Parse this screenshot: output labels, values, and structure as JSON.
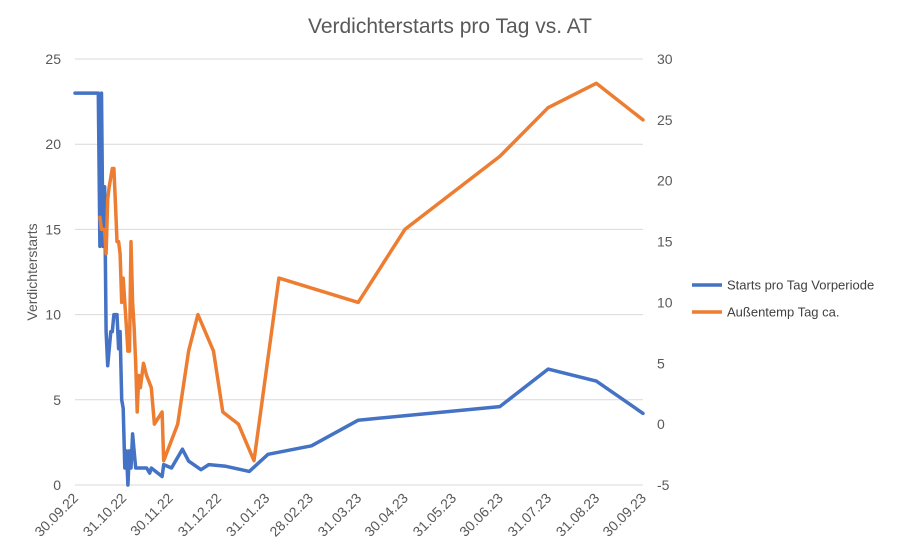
{
  "chart_data": {
    "type": "line",
    "title": "Verdichterstarts pro Tag vs. AT",
    "ylabel": "Verdichterstarts",
    "y2label": "",
    "ylim": [
      0,
      25
    ],
    "y2lim": [
      -5,
      30
    ],
    "yticks": [
      "0",
      "5",
      "10",
      "15",
      "20",
      "25"
    ],
    "y2ticks": [
      "-5",
      "0",
      "5",
      "10",
      "15",
      "20",
      "25",
      "30"
    ],
    "xlim": [
      "2022-09-30",
      "2023-09-30"
    ],
    "xticks": [
      {
        "date": "2022-09-30",
        "label": "30.09.22"
      },
      {
        "date": "2022-10-31",
        "label": "31.10.22"
      },
      {
        "date": "2022-11-30",
        "label": "30.11.22"
      },
      {
        "date": "2022-12-31",
        "label": "31.12.22"
      },
      {
        "date": "2023-01-31",
        "label": "31.01.23"
      },
      {
        "date": "2023-02-28",
        "label": "28.02.23"
      },
      {
        "date": "2023-03-31",
        "label": "31.03.23"
      },
      {
        "date": "2023-04-30",
        "label": "30.04.23"
      },
      {
        "date": "2023-05-31",
        "label": "31.05.23"
      },
      {
        "date": "2023-06-30",
        "label": "30.06.23"
      },
      {
        "date": "2023-07-31",
        "label": "31.07.23"
      },
      {
        "date": "2023-08-31",
        "label": "31.08.23"
      },
      {
        "date": "2023-09-30",
        "label": "30.09.23"
      }
    ],
    "gridlines": true,
    "legend_position": "right",
    "series": [
      {
        "name": "Starts pro Tag Vorperiode",
        "color": "#4472C4",
        "axis": "left",
        "points": [
          [
            "2022-09-30",
            23
          ],
          [
            "2022-10-15",
            23
          ],
          [
            "2022-10-16",
            14
          ],
          [
            "2022-10-17",
            23
          ],
          [
            "2022-10-18",
            14
          ],
          [
            "2022-10-19",
            17.5
          ],
          [
            "2022-10-20",
            9
          ],
          [
            "2022-10-21",
            7
          ],
          [
            "2022-10-23",
            9
          ],
          [
            "2022-10-24",
            9
          ],
          [
            "2022-10-25",
            10
          ],
          [
            "2022-10-27",
            10
          ],
          [
            "2022-10-28",
            8
          ],
          [
            "2022-10-29",
            9
          ],
          [
            "2022-10-30",
            5
          ],
          [
            "2022-10-31",
            4.5
          ],
          [
            "2022-11-01",
            1
          ],
          [
            "2022-11-02",
            2
          ],
          [
            "2022-11-03",
            0
          ],
          [
            "2022-11-04",
            2
          ],
          [
            "2022-11-05",
            1
          ],
          [
            "2022-11-06",
            3
          ],
          [
            "2022-11-07",
            2
          ],
          [
            "2022-11-08",
            1
          ],
          [
            "2022-11-15",
            1
          ],
          [
            "2022-11-17",
            0.7
          ],
          [
            "2022-11-18",
            1
          ],
          [
            "2022-11-25",
            0.5
          ],
          [
            "2022-11-26",
            1.2
          ],
          [
            "2022-12-01",
            1
          ],
          [
            "2022-12-08",
            2.1
          ],
          [
            "2022-12-12",
            1.4
          ],
          [
            "2022-12-20",
            0.9
          ],
          [
            "2022-12-25",
            1.2
          ],
          [
            "2023-01-05",
            1.1
          ],
          [
            "2023-01-20",
            0.8
          ],
          [
            "2023-02-01",
            1.8
          ],
          [
            "2023-03-01",
            2.3
          ],
          [
            "2023-03-31",
            3.8
          ],
          [
            "2023-06-30",
            4.6
          ],
          [
            "2023-07-31",
            6.8
          ],
          [
            "2023-08-31",
            6.1
          ],
          [
            "2023-09-30",
            4.2
          ]
        ]
      },
      {
        "name": "Außentemp Tag ca.",
        "color": "#ED7D31",
        "axis": "right",
        "points": [
          [
            "2022-10-16",
            17
          ],
          [
            "2022-10-17",
            16
          ],
          [
            "2022-10-18",
            16
          ],
          [
            "2022-10-19",
            16
          ],
          [
            "2022-10-20",
            14
          ],
          [
            "2022-10-21",
            18.5
          ],
          [
            "2022-10-22",
            19.5
          ],
          [
            "2022-10-24",
            21
          ],
          [
            "2022-10-25",
            21
          ],
          [
            "2022-10-26",
            18
          ],
          [
            "2022-10-27",
            15
          ],
          [
            "2022-10-28",
            15
          ],
          [
            "2022-10-29",
            14
          ],
          [
            "2022-10-30",
            10
          ],
          [
            "2022-10-31",
            12
          ],
          [
            "2022-11-01",
            10
          ],
          [
            "2022-11-02",
            8
          ],
          [
            "2022-11-03",
            6
          ],
          [
            "2022-11-04",
            6
          ],
          [
            "2022-11-05",
            15
          ],
          [
            "2022-11-06",
            10
          ],
          [
            "2022-11-07",
            8
          ],
          [
            "2022-11-08",
            5
          ],
          [
            "2022-11-09",
            1
          ],
          [
            "2022-11-10",
            4
          ],
          [
            "2022-11-11",
            3
          ],
          [
            "2022-11-13",
            5
          ],
          [
            "2022-11-15",
            4
          ],
          [
            "2022-11-18",
            3
          ],
          [
            "2022-11-20",
            0
          ],
          [
            "2022-11-25",
            1
          ],
          [
            "2022-11-26",
            -3
          ],
          [
            "2022-12-05",
            0
          ],
          [
            "2022-12-12",
            6
          ],
          [
            "2022-12-18",
            9
          ],
          [
            "2022-12-28",
            6
          ],
          [
            "2023-01-03",
            1
          ],
          [
            "2023-01-13",
            0
          ],
          [
            "2023-01-23",
            -3
          ],
          [
            "2023-02-08",
            12
          ],
          [
            "2023-03-31",
            10
          ],
          [
            "2023-04-30",
            16
          ],
          [
            "2023-06-30",
            22
          ],
          [
            "2023-07-31",
            26
          ],
          [
            "2023-08-31",
            28
          ],
          [
            "2023-09-30",
            25
          ]
        ]
      }
    ]
  }
}
